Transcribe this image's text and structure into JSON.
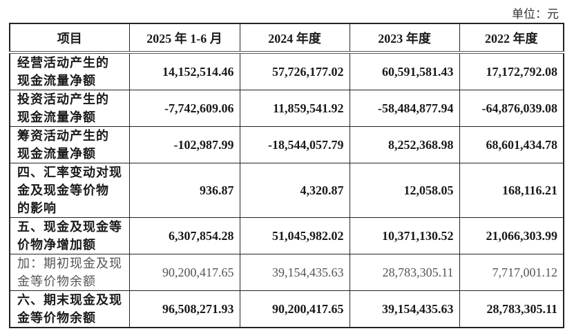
{
  "unit_label": "单位：元",
  "table": {
    "headers": [
      "项目",
      "2025 年 1-6 月",
      "2024 年度",
      "2023 年度",
      "2022 年度"
    ],
    "rows": [
      {
        "label": "经营活动产生的现金流量净额",
        "lines": [
          "经营活动产生的",
          "现金流量净额"
        ],
        "values": [
          "14,152,514.46",
          "57,726,177.02",
          "60,591,581.43",
          "17,172,792.08"
        ],
        "bold": true
      },
      {
        "label": "投资活动产生的现金流量净额",
        "lines": [
          "投资活动产生的",
          "现金流量净额"
        ],
        "values": [
          "-7,742,609.06",
          "11,859,541.92",
          "-58,484,877.94",
          "-64,876,039.08"
        ],
        "bold": true
      },
      {
        "label": "筹资活动产生的现金流量净额",
        "lines": [
          "筹资活动产生的",
          "现金流量净额"
        ],
        "values": [
          "-102,987.99",
          "-18,544,057.79",
          "8,252,368.98",
          "68,601,434.78"
        ],
        "bold": true
      },
      {
        "label": "四、汇率变动对现金及现金等价物的影响",
        "lines": [
          "四、汇率变动对现",
          "金及现金等价物",
          "的影响"
        ],
        "values": [
          "936.87",
          "4,320.87",
          "12,058.05",
          "168,116.21"
        ],
        "bold": true
      },
      {
        "label": "五、现金及现金等价物净增加额",
        "lines": [
          "五、现金及现金等",
          "价物净增加额"
        ],
        "values": [
          "6,307,854.28",
          "51,045,982.02",
          "10,371,130.52",
          "21,066,303.99"
        ],
        "bold": true
      },
      {
        "label": "加：期初现金及现金等价物余额",
        "lines": [
          "加：期初现金及现",
          "金等价物余额"
        ],
        "values": [
          "90,200,417.65",
          "39,154,435.63",
          "28,783,305.11",
          "7,717,001.12"
        ],
        "bold": false
      },
      {
        "label": "六、期末现金及现金等价物余额",
        "lines": [
          "六、期末现金及现",
          "金等价物余额"
        ],
        "values": [
          "96,508,271.93",
          "90,200,417.65",
          "39,154,435.63",
          "28,783,305.11"
        ],
        "bold": true
      }
    ]
  }
}
